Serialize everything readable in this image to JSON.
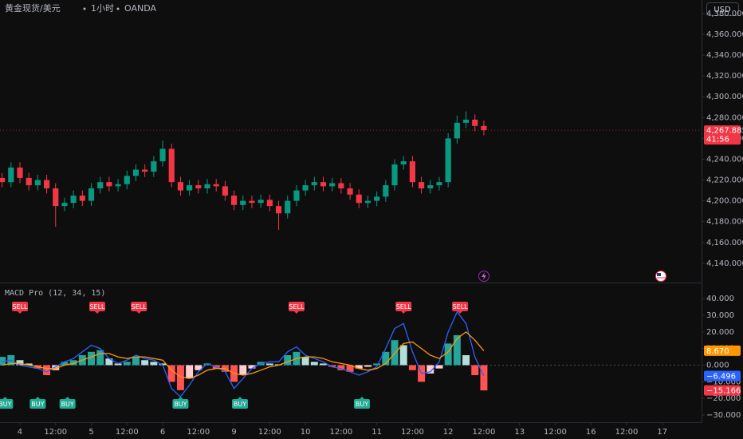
{
  "header": {
    "symbol": "黄金现货/美元",
    "interval": "1小时",
    "source": "OANDA"
  },
  "ui": {
    "currency": "USD"
  },
  "chart_data": [
    {
      "type": "candlestick",
      "x": [
        -6,
        -3,
        0,
        3,
        6,
        9,
        12,
        15,
        18,
        21,
        24,
        27,
        30,
        33,
        36,
        39,
        42,
        45,
        48,
        51,
        54,
        57,
        60,
        63,
        66,
        69,
        72,
        75,
        78,
        81,
        84,
        87,
        90,
        93,
        96,
        99,
        102,
        105,
        108,
        111,
        114,
        117,
        120,
        123,
        126,
        129,
        132,
        135,
        138,
        141,
        144,
        147,
        150,
        153,
        156
      ],
      "open": [
        4222,
        4218,
        4232,
        4222,
        4215,
        4220,
        4212,
        4195,
        4198,
        4205,
        4200,
        4212,
        4218,
        4214,
        4216,
        4224,
        4230,
        4228,
        4238,
        4250,
        4218,
        4210,
        4215,
        4212,
        4216,
        4214,
        4205,
        4196,
        4200,
        4198,
        4201,
        4195,
        4188,
        4200,
        4210,
        4215,
        4218,
        4214,
        4217,
        4212,
        4206,
        4198,
        4200,
        4204,
        4215,
        4235,
        4238,
        4218,
        4212,
        4215,
        4218,
        4260,
        4275,
        4278,
        4272
      ],
      "high": [
        4227,
        4237,
        4237,
        4227,
        4225,
        4225,
        4217,
        4203,
        4210,
        4210,
        4217,
        4223,
        4223,
        4221,
        4229,
        4235,
        4235,
        4243,
        4258,
        4255,
        4223,
        4220,
        4220,
        4221,
        4221,
        4219,
        4210,
        4205,
        4205,
        4206,
        4206,
        4200,
        4205,
        4215,
        4220,
        4223,
        4223,
        4222,
        4222,
        4217,
        4211,
        4205,
        4209,
        4220,
        4240,
        4243,
        4243,
        4223,
        4220,
        4223,
        4265,
        4282,
        4286,
        4283,
        4277
      ],
      "low": [
        4213,
        4213,
        4217,
        4210,
        4210,
        4207,
        4175,
        4190,
        4193,
        4195,
        4195,
        4207,
        4209,
        4209,
        4211,
        4219,
        4223,
        4223,
        4233,
        4213,
        4205,
        4205,
        4207,
        4207,
        4209,
        4200,
        4191,
        4191,
        4193,
        4193,
        4190,
        4172,
        4183,
        4195,
        4205,
        4210,
        4209,
        4209,
        4207,
        4201,
        4193,
        4193,
        4195,
        4199,
        4210,
        4230,
        4213,
        4207,
        4207,
        4210,
        4213,
        4255,
        4270,
        4267,
        4263
      ],
      "close": [
        4218,
        4232,
        4222,
        4215,
        4220,
        4212,
        4195,
        4198,
        4205,
        4200,
        4212,
        4218,
        4214,
        4216,
        4224,
        4230,
        4228,
        4238,
        4250,
        4218,
        4210,
        4215,
        4212,
        4216,
        4214,
        4205,
        4196,
        4200,
        4198,
        4201,
        4195,
        4188,
        4200,
        4210,
        4215,
        4218,
        4214,
        4217,
        4212,
        4206,
        4198,
        4200,
        4204,
        4215,
        4235,
        4238,
        4218,
        4212,
        4215,
        4218,
        4260,
        4275,
        4278,
        4272,
        4267.885
      ],
      "colors": {
        "up": "#089981",
        "down": "#f23645"
      },
      "xlim": [
        -6.7,
        229.2
      ],
      "xticks": [
        {
          "value": 0,
          "label": "4"
        },
        {
          "value": 12,
          "label": "12:00"
        },
        {
          "value": 24,
          "label": "5"
        },
        {
          "value": 36,
          "label": "12:00"
        },
        {
          "value": 48,
          "label": "6"
        },
        {
          "value": 60,
          "label": "12:00"
        },
        {
          "value": 72,
          "label": "9"
        },
        {
          "value": 84,
          "label": "12:00"
        },
        {
          "value": 96,
          "label": "10"
        },
        {
          "value": 108,
          "label": "12:00"
        },
        {
          "value": 120,
          "label": "11"
        },
        {
          "value": 132,
          "label": "12:00"
        },
        {
          "value": 144,
          "label": "12"
        },
        {
          "value": 156,
          "label": "12:00"
        },
        {
          "value": 168,
          "label": "13"
        },
        {
          "value": 180,
          "label": "12:00"
        },
        {
          "value": 192,
          "label": "16"
        },
        {
          "value": 204,
          "label": "12:00"
        },
        {
          "value": 216,
          "label": "17"
        }
      ],
      "ylim": [
        4123,
        4393
      ],
      "yticks": [
        {
          "value": 4140,
          "label": "4,140.000"
        },
        {
          "value": 4160,
          "label": "4,160.000"
        },
        {
          "value": 4180,
          "label": "4,180.000"
        },
        {
          "value": 4200,
          "label": "4,200.000"
        },
        {
          "value": 4220,
          "label": "4,220.000"
        },
        {
          "value": 4240,
          "label": "4,240.000"
        },
        {
          "value": 4260,
          "label": "4,260.000"
        },
        {
          "value": 4280,
          "label": "4,280.000"
        },
        {
          "value": 4300,
          "label": "4,300.000"
        },
        {
          "value": 4320,
          "label": "4,320.000"
        },
        {
          "value": 4340,
          "label": "4,340.000"
        },
        {
          "value": 4360,
          "label": "4,360.000"
        },
        {
          "value": 4380,
          "label": "4,380.000"
        }
      ],
      "price": {
        "value": 4267.885,
        "label": "4,267.885",
        "countdown": "41:56",
        "color": "#f23645"
      }
    },
    {
      "type": "macd",
      "title": "MACD Pro (12, 34, 15)",
      "x": [
        -6,
        -3,
        0,
        3,
        6,
        9,
        12,
        15,
        18,
        21,
        24,
        27,
        30,
        33,
        36,
        39,
        42,
        45,
        48,
        51,
        54,
        57,
        60,
        63,
        66,
        69,
        72,
        75,
        78,
        81,
        84,
        87,
        90,
        93,
        96,
        99,
        102,
        105,
        108,
        111,
        114,
        117,
        120,
        123,
        126,
        129,
        132,
        135,
        138,
        141,
        144,
        147,
        150,
        153,
        156
      ],
      "histogram": {
        "values": [
          5,
          6,
          3,
          1,
          -2,
          -6,
          -3,
          2,
          3,
          6,
          8,
          9,
          4,
          1,
          2,
          5,
          3,
          2,
          1,
          -10,
          -15,
          -8,
          -3,
          1,
          -2,
          -4,
          -10,
          -6,
          -2,
          2,
          1,
          0.5,
          6,
          8,
          5,
          2,
          1,
          -1,
          -3,
          -4,
          -2,
          -1,
          1,
          8,
          15,
          12,
          -3,
          -10,
          -5,
          -2,
          13,
          18,
          6,
          -6,
          -15.166
        ],
        "last_label": "−15.166",
        "color": "#f23645",
        "colors": {
          "pos_up": "#26a69a",
          "pos_down": "#b2dfdb",
          "neg_down": "#ff5252",
          "neg_up": "#ffcdd2"
        }
      },
      "series": [
        {
          "color": "#2962ff",
          "values": [
            2,
            3,
            0,
            -1,
            -2,
            -4,
            -1,
            2,
            4,
            8,
            12,
            10,
            4,
            1,
            3,
            6,
            4,
            3,
            0,
            -14,
            -19,
            -12,
            -4,
            1,
            -1,
            -4,
            -14,
            -8,
            -2,
            1,
            2,
            2,
            8,
            11,
            6,
            4,
            2,
            -1,
            -2,
            -4,
            -6,
            -4,
            -1,
            10,
            22,
            25,
            8,
            -5,
            -4,
            2,
            20,
            32,
            25,
            5,
            -6.496
          ],
          "last_label": "−6.496"
        },
        {
          "color": "#ff9800",
          "values": [
            0,
            1,
            1,
            0,
            -1,
            -2,
            -2,
            0,
            1,
            3,
            5,
            7,
            7,
            5,
            4,
            5,
            5,
            4,
            3,
            -3,
            -7,
            -8,
            -6,
            -3,
            -2,
            -2,
            -5,
            -6,
            -5,
            -3,
            -1,
            0,
            2,
            4,
            5,
            5,
            4,
            2,
            1,
            0,
            -2,
            -3,
            -2,
            1,
            7,
            13,
            14,
            10,
            6,
            4,
            8,
            16,
            20,
            15,
            8.67
          ],
          "last_label": "8.670"
        }
      ],
      "signals": [
        {
          "label": "SELL",
          "x": 0,
          "color": "#f23645"
        },
        {
          "label": "SELL",
          "x": 26,
          "color": "#f23645"
        },
        {
          "label": "SELL",
          "x": 40,
          "color": "#f23645"
        },
        {
          "label": "SELL",
          "x": 93,
          "color": "#f23645"
        },
        {
          "label": "SELL",
          "x": 129,
          "color": "#f23645"
        },
        {
          "label": "SELL",
          "x": 148,
          "color": "#f23645"
        },
        {
          "label": "BUY",
          "x": -5,
          "color": "#22ab94"
        },
        {
          "label": "BUY",
          "x": 6,
          "color": "#22ab94"
        },
        {
          "label": "BUY",
          "x": 16,
          "color": "#22ab94"
        },
        {
          "label": "BUY",
          "x": 54,
          "color": "#22ab94"
        },
        {
          "label": "BUY",
          "x": 74,
          "color": "#22ab94"
        },
        {
          "label": "BUY",
          "x": 115,
          "color": "#22ab94"
        }
      ],
      "ylim": [
        -33.8,
        47.7
      ],
      "yticks": [
        {
          "value": 40,
          "label": "40.000"
        },
        {
          "value": 30,
          "label": "30.000"
        },
        {
          "value": 20,
          "label": "20.000"
        },
        {
          "value": 10,
          "label": "10.000"
        },
        {
          "value": 0,
          "label": "0.000"
        },
        {
          "value": -10,
          "label": "−10.000"
        },
        {
          "value": -20,
          "label": "−20.000"
        },
        {
          "value": -30,
          "label": "−30.000"
        }
      ]
    }
  ]
}
